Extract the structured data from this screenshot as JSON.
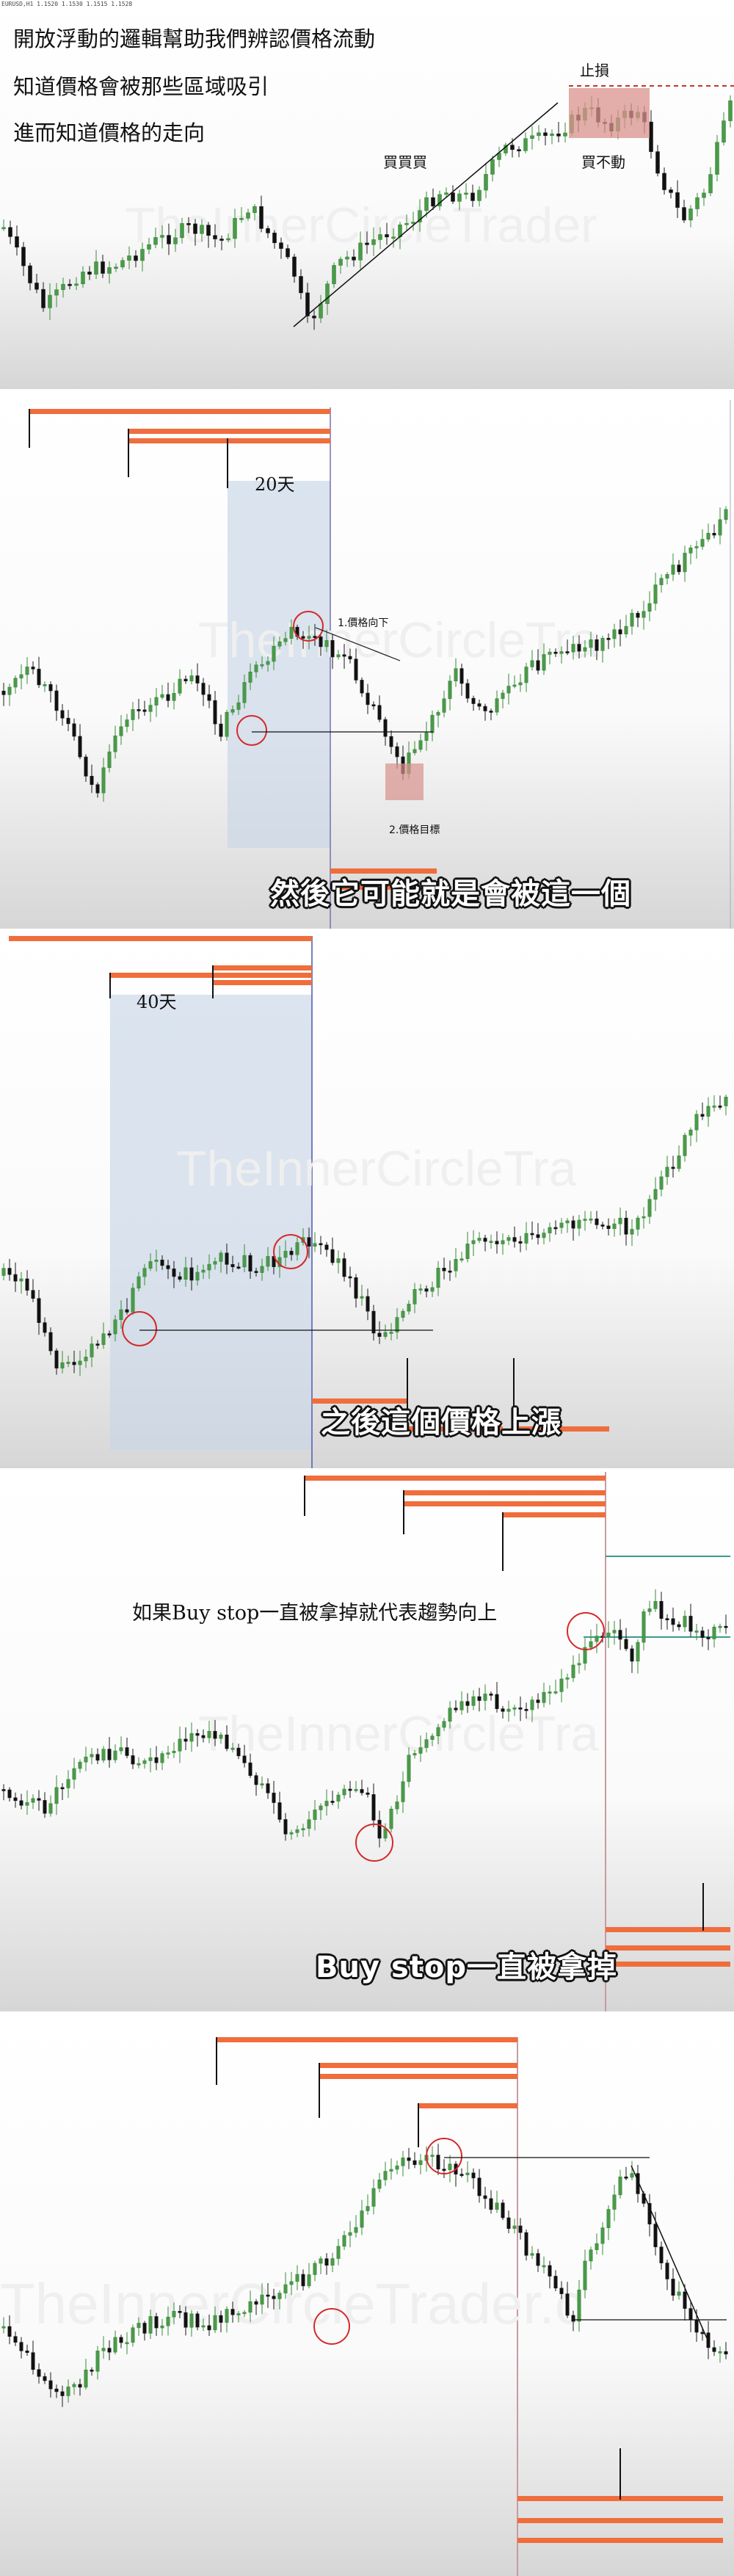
{
  "screens": {
    "s1": {
      "status_line": "EURUSD,H1  1.1520 1.1530 1.1515 1.1528",
      "notes": [
        "開放浮動的邏輯幫助我們辨認價格流動",
        "知道價格會被那些區域吸引",
        "進而知道價格的走向"
      ],
      "label_buy": "買買買",
      "label_stop": "止損",
      "label_no_move": "買不動",
      "watermark": "TheInnerCircleTrader"
    },
    "s2": {
      "days_label": "20天",
      "ann_down": "1.價格向下",
      "ann_target": "2.價格目標",
      "caption": "然後它可能就是會被這一個",
      "watermark": "TheInnerCircleTra"
    },
    "s3": {
      "days_label": "40天",
      "caption": "之後這個價格上漲",
      "watermark": "TheInnerCircleTra"
    },
    "s4": {
      "note": "如果Buy stop一直被拿掉就代表趨勢向上",
      "caption": "Buy stop一直被拿掉",
      "watermark": "TheInnerCircleTra"
    },
    "s5": {
      "watermark": "TheInnerCircleTrader.c"
    }
  },
  "colors": {
    "bull": "#3a8a3a",
    "bear": "#1a1a1a",
    "level": "#f06d3c",
    "circle": "#d42a2a",
    "zone": "#c8d6e6",
    "stopbox": "#d9928c"
  }
}
